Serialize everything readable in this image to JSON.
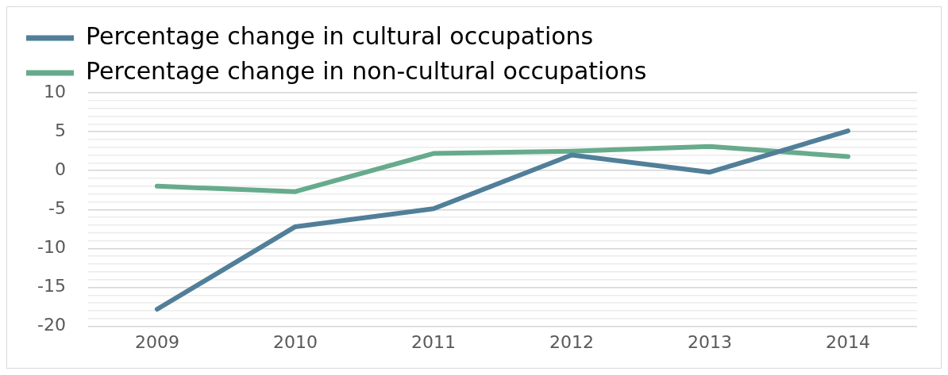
{
  "chart_data": {
    "type": "line",
    "categories": [
      "2009",
      "2010",
      "2011",
      "2012",
      "2013",
      "2014"
    ],
    "series": [
      {
        "name": "Percentage change in cultural occupations",
        "color": "#517f99",
        "values": [
          -17.8,
          -7.2,
          -4.9,
          2.0,
          -0.2,
          5.1
        ]
      },
      {
        "name": "Percentage change in non-cultural occupations",
        "color": "#67ab8c",
        "values": [
          -2.0,
          -2.7,
          2.2,
          2.5,
          3.1,
          1.8
        ]
      }
    ],
    "ylim": [
      -20,
      10
    ],
    "yticks": [
      -20,
      {
        "value": -19,
        "label": null
      },
      {
        "value": -18,
        "label": null
      },
      {
        "value": -17,
        "label": null
      },
      {
        "value": -16,
        "label": null
      },
      -15,
      {
        "value": -14,
        "label": null
      },
      {
        "value": -13,
        "label": null
      },
      {
        "value": -12,
        "label": null
      },
      {
        "value": -11,
        "label": null
      },
      -10,
      {
        "value": -9,
        "label": null
      },
      {
        "value": -8,
        "label": null
      },
      {
        "value": -7,
        "label": null
      },
      {
        "value": -6,
        "label": null
      },
      -5,
      {
        "value": -4,
        "label": null
      },
      {
        "value": -3,
        "label": null
      },
      {
        "value": -2,
        "label": null
      },
      {
        "value": -1,
        "label": null
      },
      0,
      {
        "value": 1,
        "label": null
      },
      {
        "value": 2,
        "label": null
      },
      {
        "value": 3,
        "label": null
      },
      {
        "value": 4,
        "label": null
      },
      5,
      {
        "value": 6,
        "label": null
      },
      {
        "value": 7,
        "label": null
      },
      {
        "value": 8,
        "label": null
      },
      {
        "value": 9,
        "label": null
      },
      10
    ],
    "grid": "y",
    "legend": "top",
    "marker": "none",
    "line_style": "solid"
  }
}
